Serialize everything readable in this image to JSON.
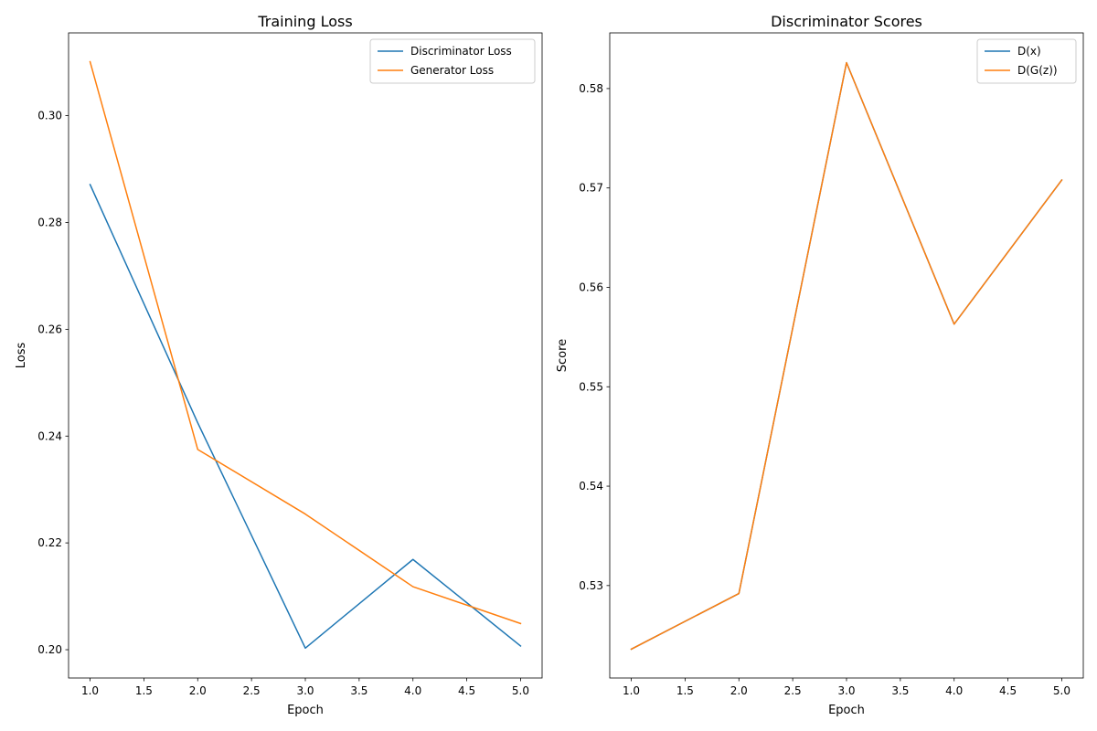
{
  "chart_data": [
    {
      "type": "line",
      "title": "Training Loss",
      "xlabel": "Epoch",
      "ylabel": "Loss",
      "xlim": [
        0.8,
        5.2
      ],
      "ylim": [
        0.1947,
        0.3155
      ],
      "xticks": [
        1.0,
        1.5,
        2.0,
        2.5,
        3.0,
        3.5,
        4.0,
        4.5,
        5.0
      ],
      "xtick_labels": [
        "1.0",
        "1.5",
        "2.0",
        "2.5",
        "3.0",
        "3.5",
        "4.0",
        "4.5",
        "5.0"
      ],
      "yticks": [
        0.2,
        0.22,
        0.24,
        0.26,
        0.28,
        0.3
      ],
      "ytick_labels": [
        "0.20",
        "0.22",
        "0.24",
        "0.26",
        "0.28",
        "0.30"
      ],
      "grid": false,
      "legend": "upper-right",
      "x": [
        1,
        2,
        3,
        4,
        5
      ],
      "series": [
        {
          "name": "Discriminator Loss",
          "color": "#1f77b4",
          "values": [
            0.2871,
            0.2425,
            0.2003,
            0.2169,
            0.2007
          ]
        },
        {
          "name": "Generator Loss",
          "color": "#ff7f0e",
          "values": [
            0.3101,
            0.2375,
            0.2254,
            0.2118,
            0.2049
          ]
        }
      ]
    },
    {
      "type": "line",
      "title": "Discriminator Scores",
      "xlabel": "Epoch",
      "ylabel": "Score",
      "xlim": [
        0.8,
        5.2
      ],
      "ylim": [
        0.5207,
        0.5856
      ],
      "xticks": [
        1.0,
        1.5,
        2.0,
        2.5,
        3.0,
        3.5,
        4.0,
        4.5,
        5.0
      ],
      "xtick_labels": [
        "1.0",
        "1.5",
        "2.0",
        "2.5",
        "3.0",
        "3.5",
        "4.0",
        "4.5",
        "5.0"
      ],
      "yticks": [
        0.53,
        0.54,
        0.55,
        0.56,
        0.57,
        0.58
      ],
      "ytick_labels": [
        "0.53",
        "0.54",
        "0.55",
        "0.56",
        "0.57",
        "0.58"
      ],
      "grid": false,
      "legend": "upper-right",
      "x": [
        1,
        2,
        3,
        4,
        5
      ],
      "series": [
        {
          "name": "D(x)",
          "color": "#1f77b4",
          "values": [
            0.5236,
            0.5292,
            0.5826,
            0.5563,
            0.5708
          ]
        },
        {
          "name": "D(G(z))",
          "color": "#ff7f0e",
          "values": [
            0.5236,
            0.5292,
            0.5826,
            0.5563,
            0.5708
          ]
        }
      ]
    }
  ]
}
